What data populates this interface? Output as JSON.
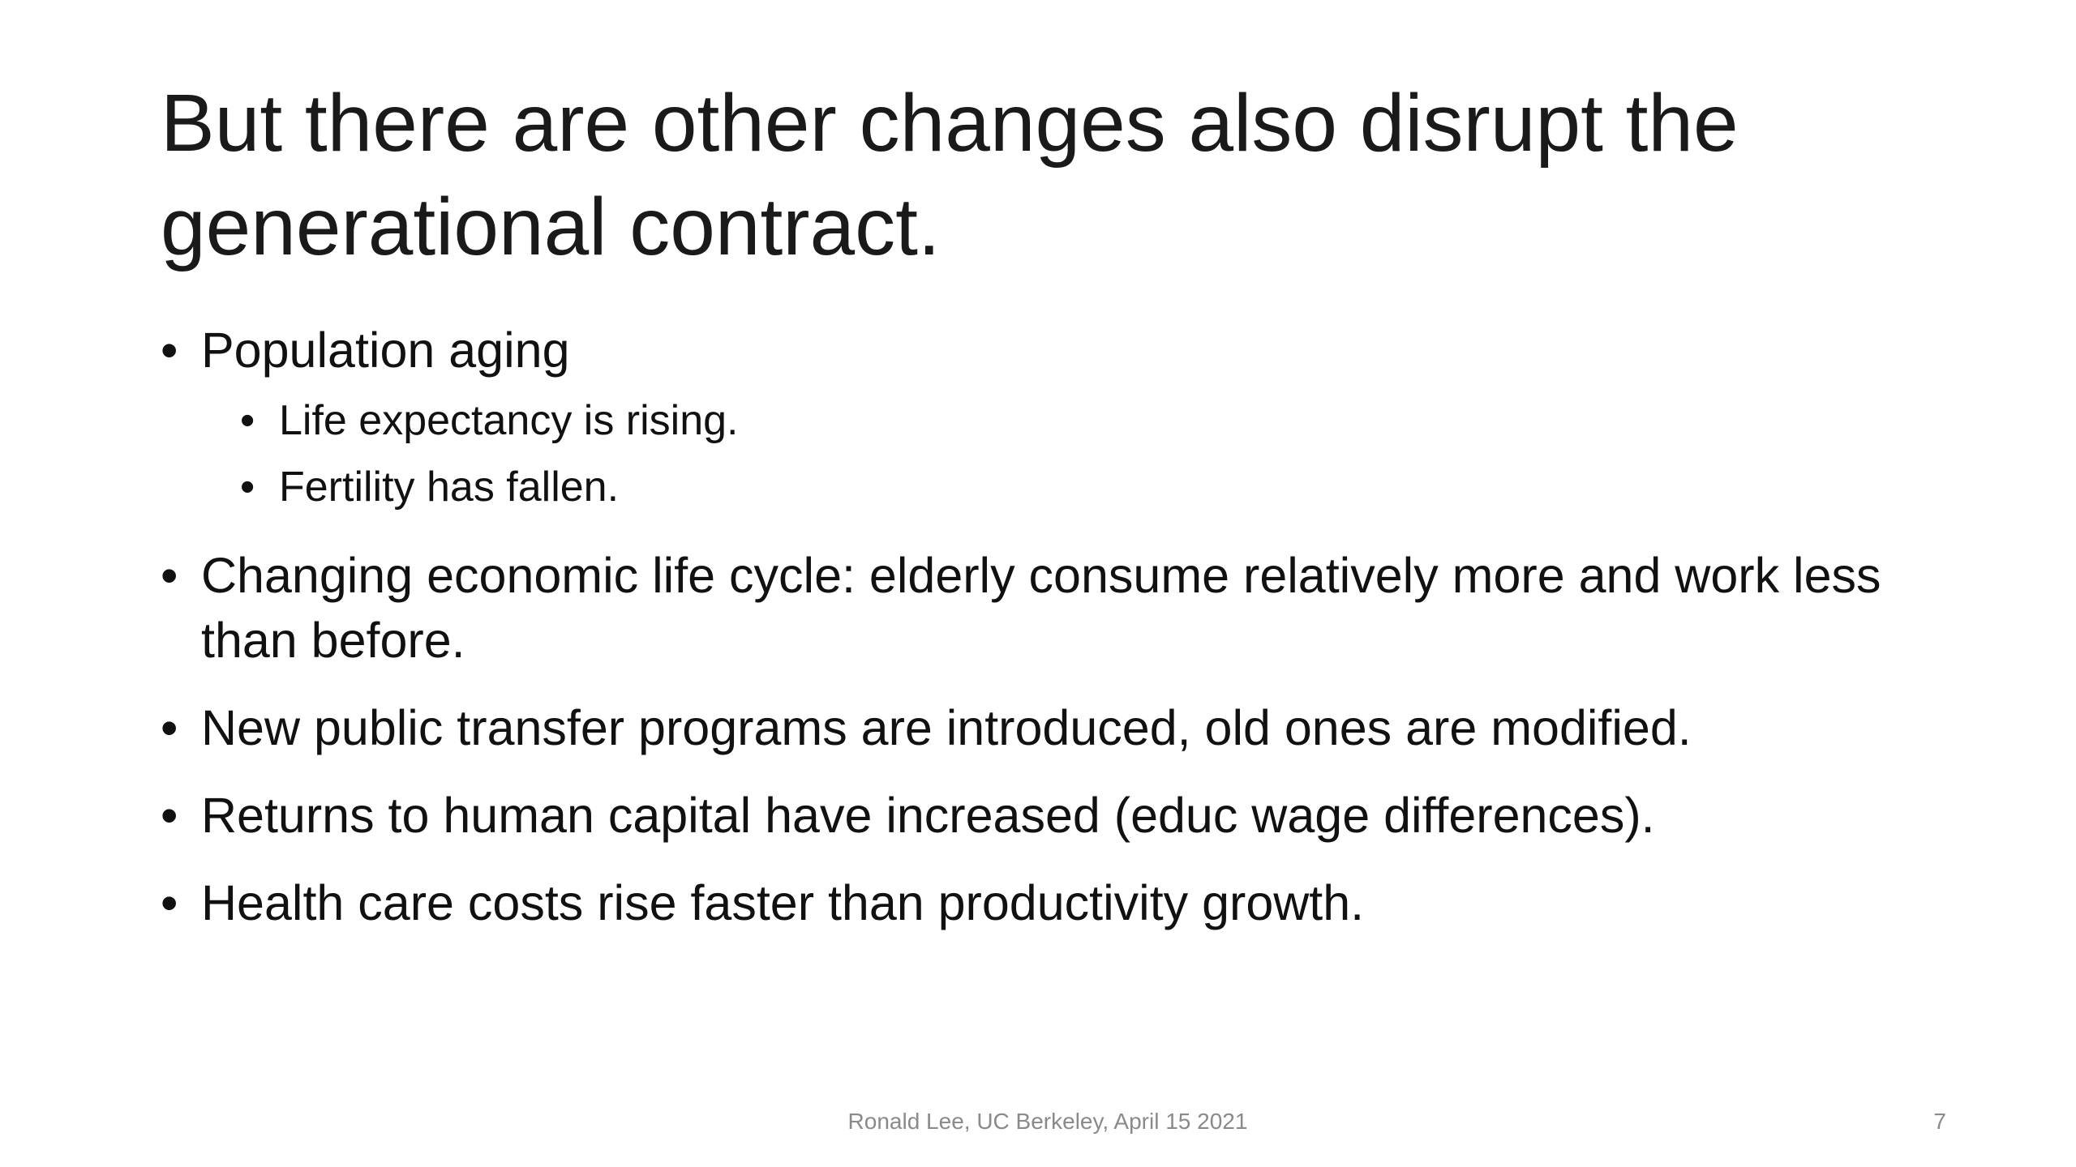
{
  "title": "But there are other changes also disrupt the generational contract.",
  "bullets": [
    {
      "text": "Population aging",
      "sub_bullets": [
        "Life expectancy is rising.",
        "Fertility has fallen."
      ]
    },
    {
      "text": "Changing economic life cycle: elderly consume relatively more and work less than before."
    },
    {
      "text": "New public transfer programs are introduced, old ones are modified."
    },
    {
      "text": "Returns to human capital have increased (educ wage differences)."
    },
    {
      "text": "Health care costs rise faster than productivity growth."
    }
  ],
  "footer": {
    "text": "Ronald Lee, UC Berkeley, April 15 2021",
    "page_number": "7"
  }
}
